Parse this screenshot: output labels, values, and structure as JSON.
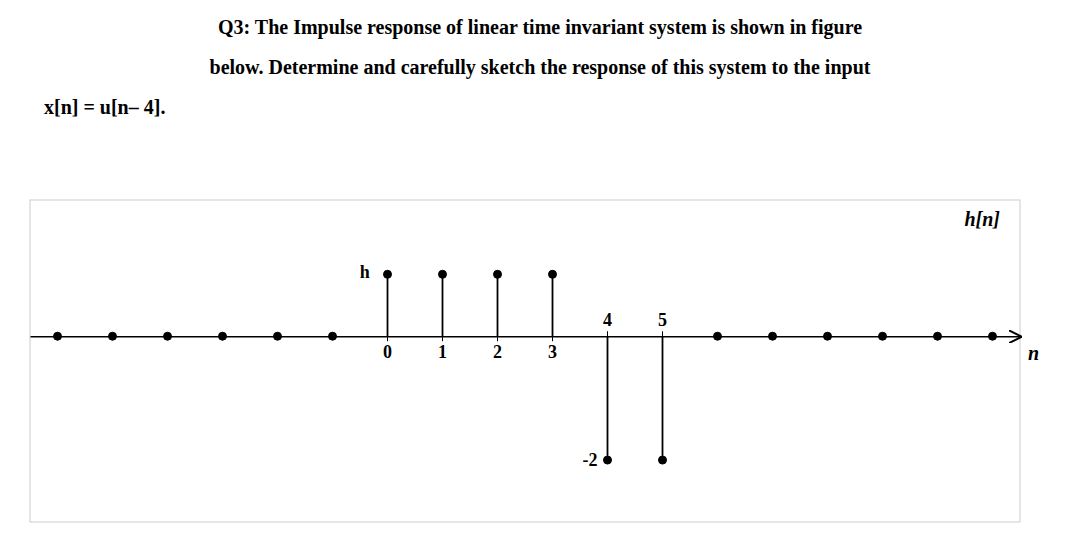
{
  "chart_data": {
    "type": "stem",
    "title": [
      "Q3: The Impulse response of linear time invariant system is shown in figure",
      "below. Determine and carefully sketch the response of this system to the input",
      "x[n] = u[n– 4]."
    ],
    "x_label": "n",
    "y_label": "h[n]",
    "x": [
      -6,
      -5,
      -4,
      -3,
      -2,
      -1,
      0,
      1,
      2,
      3,
      4,
      5,
      6,
      7,
      8,
      9,
      10,
      11
    ],
    "values": [
      0,
      0,
      0,
      0,
      0,
      0,
      1,
      1,
      1,
      1,
      -2,
      -2,
      0,
      0,
      0,
      0,
      0,
      0
    ],
    "color": "black",
    "xlim": [
      -6.5,
      11.5
    ],
    "ylim": [
      -3.0,
      2.2
    ],
    "xticks": [
      0,
      1,
      2,
      3,
      4,
      5
    ],
    "yticks": [
      -2
    ],
    "annotations": [
      {
        "text": "h",
        "x": -0.25,
        "y": 1.05
      }
    ],
    "grid": false
  }
}
